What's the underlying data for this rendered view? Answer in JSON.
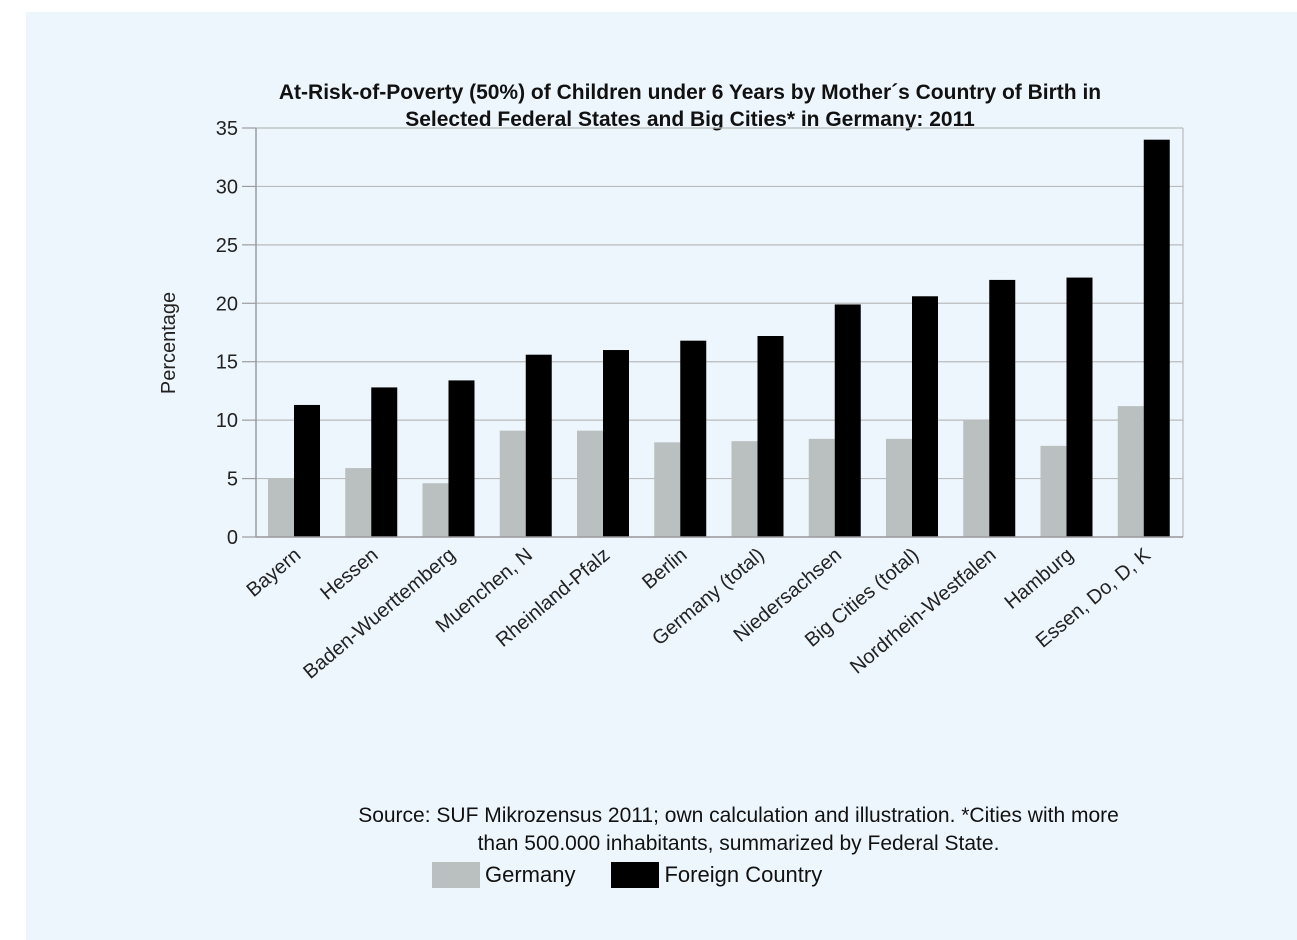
{
  "chart_data": {
    "type": "bar",
    "title": [
      "At-Risk-of-Poverty (50%) of Children under 6 Years by Mother´s Country of Birth in",
      "Selected Federal States and Big Cities* in Germany: 2011"
    ],
    "xlabel": "",
    "ylabel": "Percentage",
    "ylim": [
      0,
      35
    ],
    "yticks": [
      "0",
      "5",
      "10",
      "15",
      "20",
      "25",
      "30",
      "35"
    ],
    "grid": true,
    "legend_position": "bottom",
    "categories": [
      "Bayern",
      "Hessen",
      "Baden-Wuerttemberg",
      "Muenchen, N",
      "Rheinland-Pfalz",
      "Berlin",
      "Germany (total)",
      "Niedersachsen",
      "Big Cities (total)",
      "Nordrhein-Westfalen",
      "Hamburg",
      "Essen, Do, D, K"
    ],
    "series": [
      {
        "name": "Germany",
        "color": "#babfc0",
        "values": [
          5.0,
          5.9,
          4.6,
          9.1,
          9.1,
          8.1,
          8.2,
          8.4,
          8.4,
          10.0,
          7.8,
          11.2
        ]
      },
      {
        "name": "Foreign Country",
        "color": "#000000",
        "values": [
          11.3,
          12.8,
          13.4,
          15.6,
          16.0,
          16.8,
          17.2,
          19.9,
          20.6,
          22.0,
          22.2,
          34.0
        ]
      }
    ],
    "source": [
      "Source: SUF Mikrozensus 2011; own calculation and illustration. *Cities with more",
      "than 500.000 inhabitants, summarized by Federal State."
    ]
  }
}
